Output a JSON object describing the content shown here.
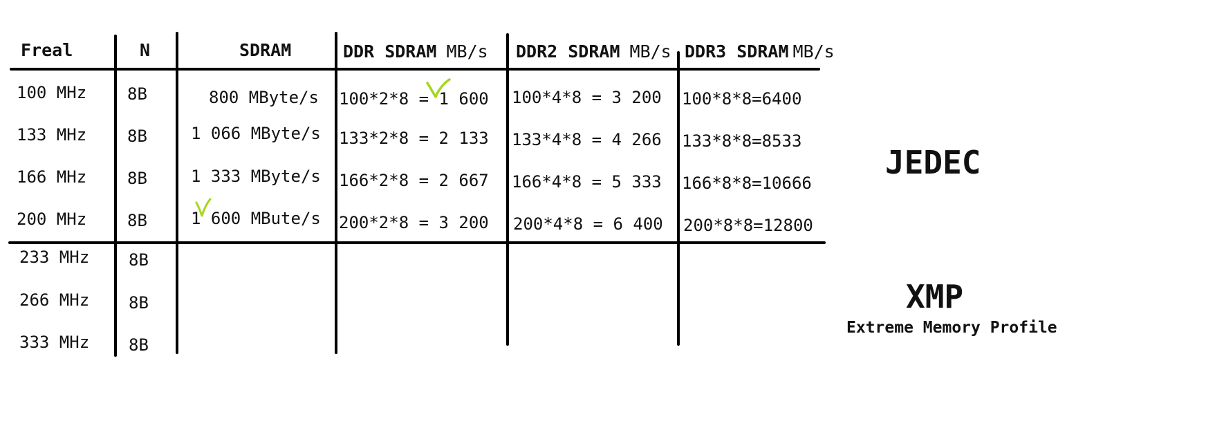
{
  "table": {
    "headers": {
      "freal": "Freal",
      "n": "N",
      "sdram": "SDRAM",
      "ddr": {
        "label": "DDR SDRAM",
        "unit": "MB/s"
      },
      "ddr2": {
        "label": "DDR2 SDRAM",
        "unit": "MB/s"
      },
      "ddr3": {
        "label": "DDR3 SDRAM",
        "unit": "MB/s"
      }
    },
    "rows": [
      {
        "freal": "100 MHz",
        "n": "8B",
        "sdram": "800 MByte/s",
        "ddr": "100*2*8 = 1 600",
        "ddr2": "100*4*8 = 3 200",
        "ddr3": "100*8*8=6400"
      },
      {
        "freal": "133 MHz",
        "n": "8B",
        "sdram": "1 066 MByte/s",
        "ddr": "133*2*8 = 2 133",
        "ddr2": "133*4*8 = 4 266",
        "ddr3": "133*8*8=8533"
      },
      {
        "freal": "166 MHz",
        "n": "8B",
        "sdram": "1 333 MByte/s",
        "ddr": "166*2*8 = 2 667",
        "ddr2": "166*4*8 = 5 333",
        "ddr3": "166*8*8=10666"
      },
      {
        "freal": "200 MHz",
        "n": "8B",
        "sdram": "1 600 MBute/s",
        "ddr": "200*2*8 = 3 200",
        "ddr2": "200*4*8 = 6 400",
        "ddr3": "200*8*8=12800"
      },
      {
        "freal": "233 MHz",
        "n": "8B",
        "sdram": "",
        "ddr": "",
        "ddr2": "",
        "ddr3": ""
      },
      {
        "freal": "266 MHz",
        "n": "8B",
        "sdram": "",
        "ddr": "",
        "ddr2": "",
        "ddr3": ""
      },
      {
        "freal": "333 MHz",
        "n": "8B",
        "sdram": "",
        "ddr": "",
        "ddr2": "",
        "ddr3": ""
      }
    ]
  },
  "labels": {
    "jedec": "JEDEC",
    "xmp": "XMP",
    "xmp_full": "Extreme Memory Profile"
  },
  "annotations": {
    "checkmark_color": "#a6d61e",
    "checkmark_icon": "checkmark-icon"
  }
}
